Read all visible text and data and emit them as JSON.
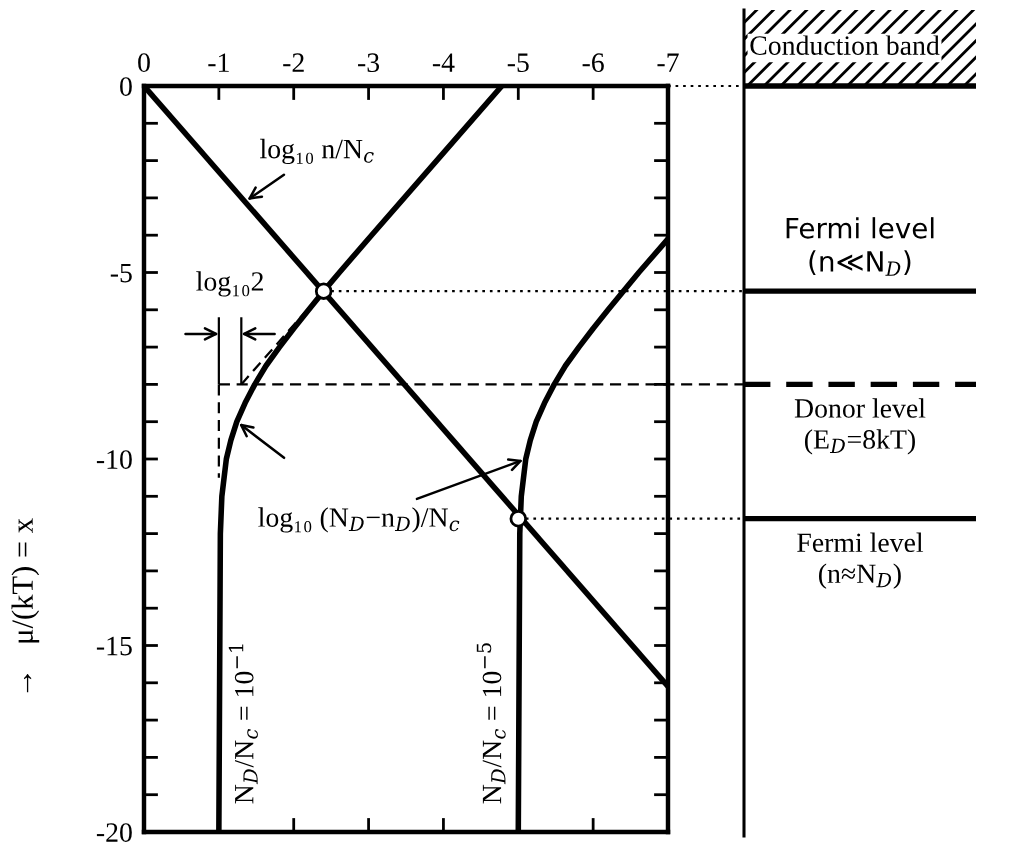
{
  "chart_data": {
    "type": "line",
    "ylabel": "→   μ/(kT) = x",
    "xlim": [
      0,
      -7
    ],
    "ylim": [
      -20,
      0
    ],
    "xticks": [
      0,
      -1,
      -2,
      -3,
      -4,
      -5,
      -6,
      -7
    ],
    "yticks": [
      0,
      {
        "value": -1,
        "label": null
      },
      {
        "value": -2,
        "label": null
      },
      {
        "value": -3,
        "label": null
      },
      {
        "value": -4,
        "label": null
      },
      -5,
      {
        "value": -6,
        "label": null
      },
      {
        "value": -7,
        "label": null
      },
      {
        "value": -8,
        "label": null
      },
      {
        "value": -9,
        "label": null
      },
      -10,
      {
        "value": -11,
        "label": null
      },
      {
        "value": -12,
        "label": null
      },
      {
        "value": -13,
        "label": null
      },
      {
        "value": -14,
        "label": null
      },
      -15,
      {
        "value": -16,
        "label": null
      },
      {
        "value": -17,
        "label": null
      },
      {
        "value": -18,
        "label": null
      },
      {
        "value": -19,
        "label": null
      },
      -20
    ],
    "series": [
      {
        "color": "#000000",
        "line_style": "solid",
        "x": [
          0,
          -7
        ],
        "values": [
          0,
          -16.1
        ]
      },
      {
        "name": "N$_{D}$/N$_{c}$ = 10$^{−1}$",
        "color": "#000000",
        "line_style": "solid",
        "x": [
          -1.0,
          -1.02,
          -1.04,
          -1.07,
          -1.1,
          -1.16,
          -1.24,
          -1.35,
          -1.48,
          -1.63,
          -1.81,
          -2.0,
          -2.2,
          -2.4,
          -2.61,
          -3.04,
          -3.91,
          -4.78
        ],
        "values": [
          -20,
          -12,
          -11,
          -10.5,
          -10,
          -9.5,
          -9,
          -8.5,
          -8,
          -7.5,
          -7,
          -6.5,
          -6,
          -5.5,
          -5,
          -4,
          -2,
          0
        ]
      },
      {
        "name": "N$_{D}$/N$_{c}$ = 10$^{−5}$",
        "color": "#000000",
        "line_style": "solid",
        "x": [
          -5.0,
          -5.02,
          -5.04,
          -5.07,
          -5.1,
          -5.16,
          -5.24,
          -5.35,
          -5.48,
          -5.63,
          -5.81,
          -6.0,
          -6.2,
          -6.61,
          -7.0
        ],
        "values": [
          -20,
          -12,
          -11,
          -10.5,
          -10,
          -9.5,
          -9,
          -8.5,
          -8,
          -7.5,
          -7,
          -6.5,
          -6,
          -5,
          -4.1
        ]
      },
      {
        "color": "#000000",
        "line_style": "solid",
        "x": [
          -1,
          -1
        ],
        "values": [
          -6.2,
          -8
        ]
      },
      {
        "color": "#000000",
        "line_style": "dashed",
        "x": [
          -1,
          -1
        ],
        "values": [
          -8,
          -10.5
        ]
      },
      {
        "color": "#000000",
        "line_style": "solid",
        "x": [
          -1.3,
          -1.3
        ],
        "values": [
          -6.2,
          -8
        ]
      },
      {
        "color": "#000000",
        "line_style": "dashed",
        "x": [
          -1.3,
          -2.4
        ],
        "values": [
          -8,
          -5.5
        ]
      },
      {
        "type": "scatter",
        "marker": "circle",
        "color": "#000000",
        "x": [
          -2.4,
          -5.0
        ],
        "values": [
          -5.5,
          -11.6
        ]
      }
    ],
    "ref_lines": [
      {
        "axis": "y",
        "value": -5.5,
        "label": "Fermi level\n(n≪N$_{D}$)",
        "line_style": "dotted"
      },
      {
        "axis": "y",
        "value": -8,
        "line_style": "dashed"
      },
      {
        "axis": "y",
        "value": -11.6,
        "label": "Fermi level\n(n≈N$_{D}$)",
        "line_style": "dotted"
      }
    ],
    "annotations": [
      {
        "text": "log₁₀ n/N$_{c}$",
        "x": -1.35,
        "y": -3.1
      },
      "log₁₀2",
      {
        "text": "log₁₀ (N$_{D}$−n$_{D}$)/N$_{c}$",
        "x": -5.1,
        "y": -10
      },
      "Conduction band",
      "Donor level\n(E$_{D}$=8kT)"
    ]
  }
}
